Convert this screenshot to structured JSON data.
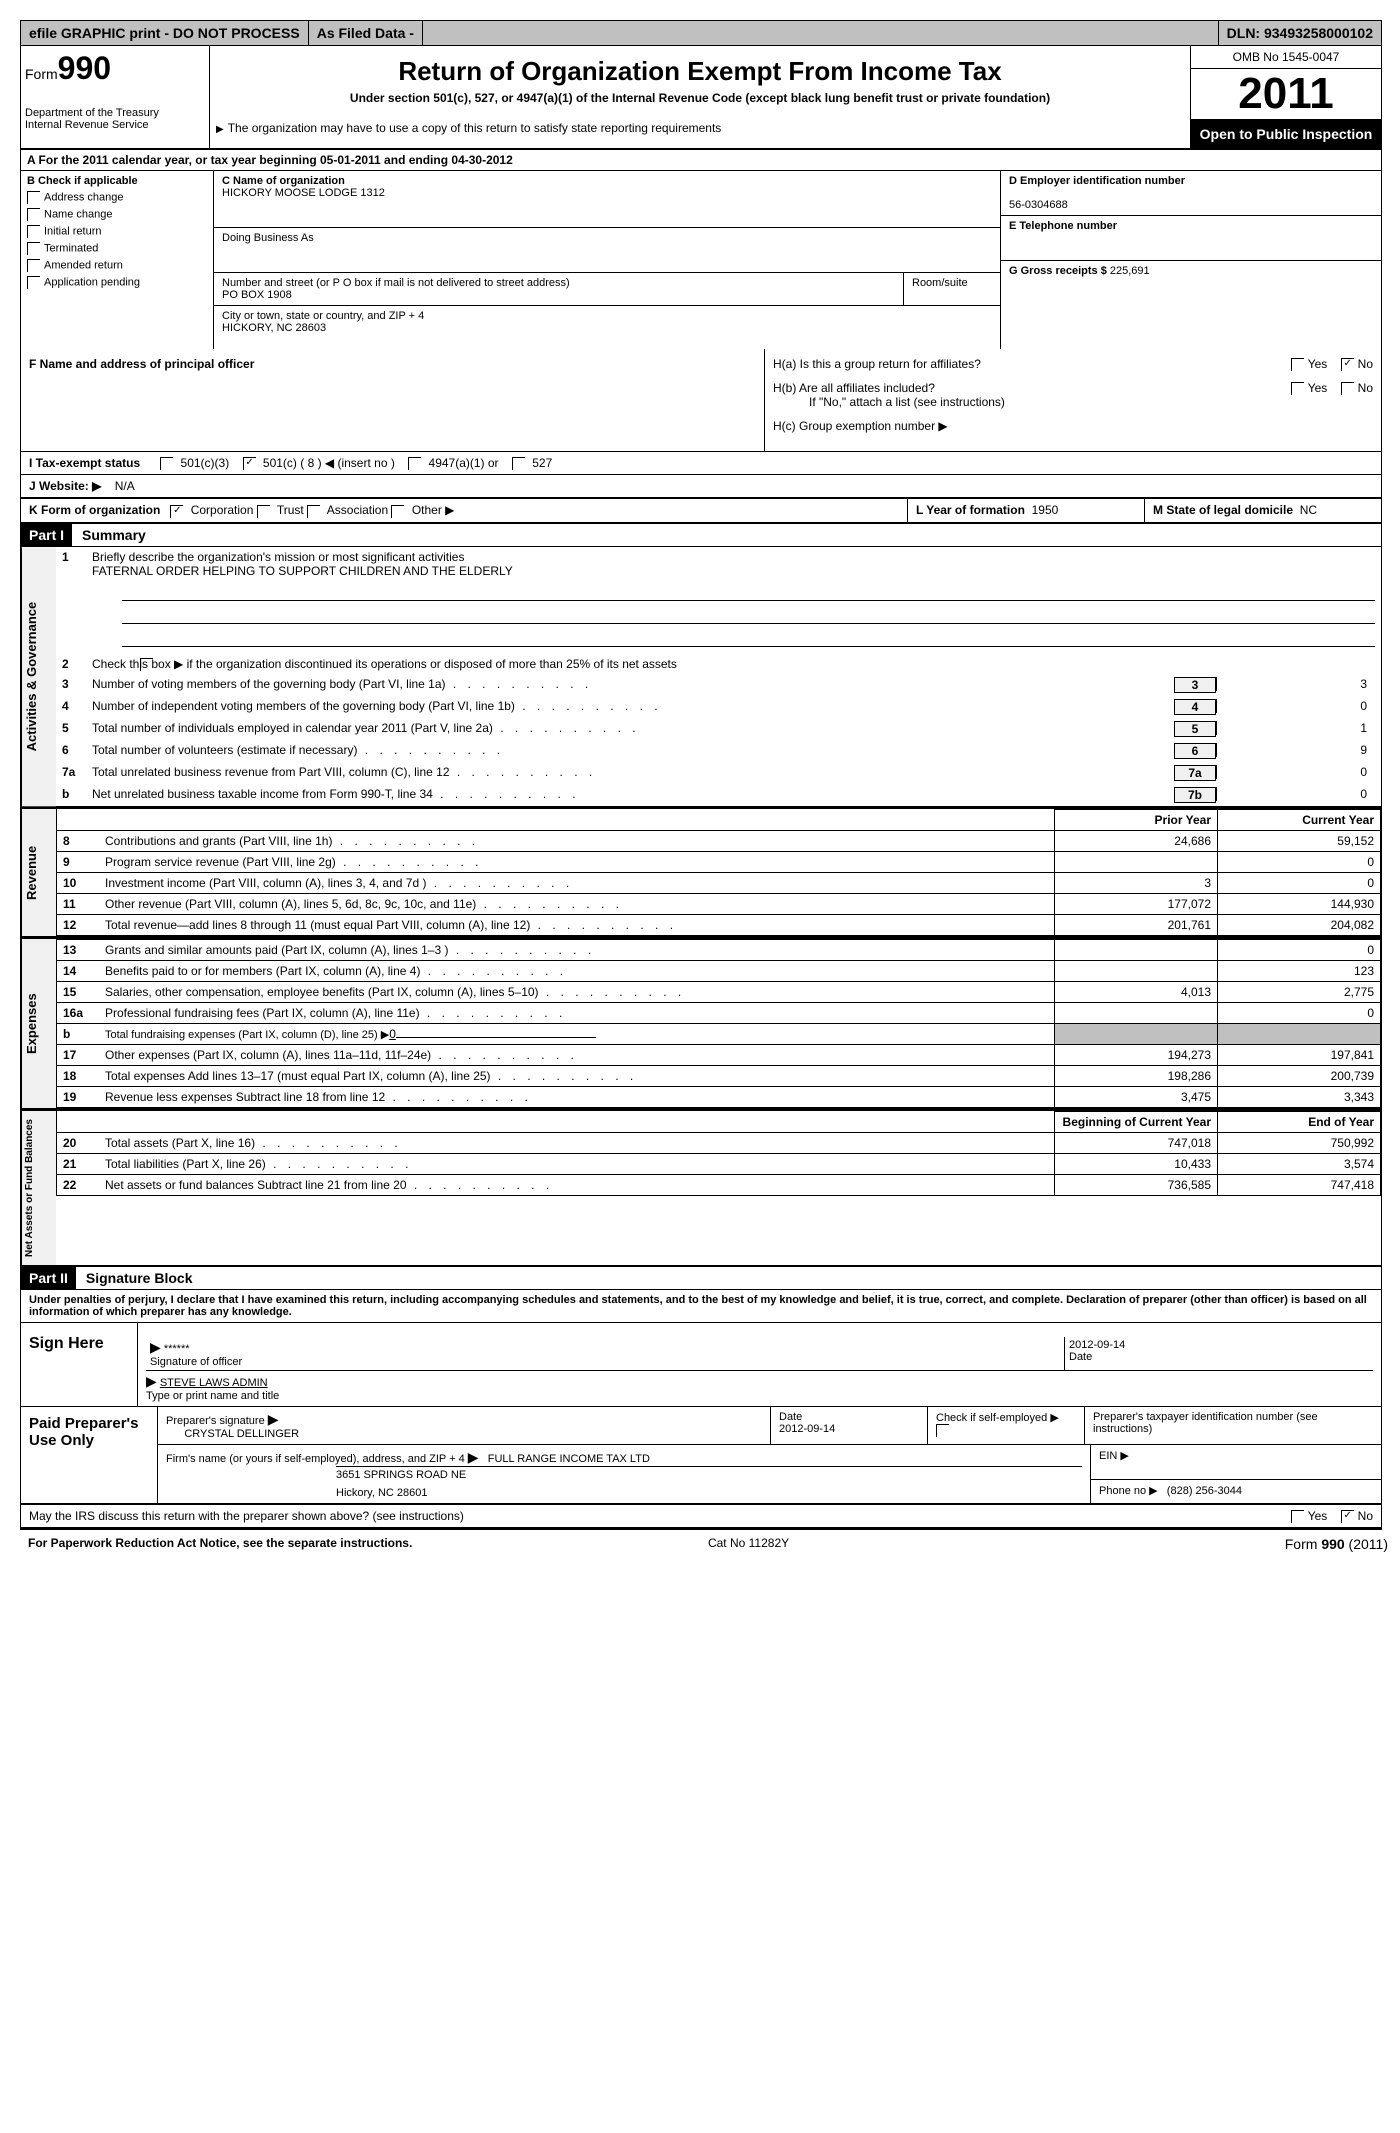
{
  "topbar": {
    "efile": "efile GRAPHIC print - DO NOT PROCESS",
    "asfiled": "As Filed Data -",
    "dln_label": "DLN:",
    "dln": "93493258000102"
  },
  "header": {
    "form_label": "Form",
    "form_number": "990",
    "dept": "Department of the Treasury",
    "irs": "Internal Revenue Service",
    "title": "Return of Organization Exempt From Income Tax",
    "subtitle": "Under section 501(c), 527, or 4947(a)(1) of the Internal Revenue Code (except black lung benefit trust or private foundation)",
    "note": "The organization may have to use a copy of this return to satisfy state reporting requirements",
    "omb": "OMB No 1545-0047",
    "year": "2011",
    "inspection": "Open to Public Inspection"
  },
  "row_a": "A  For the 2011 calendar year, or tax year beginning 05-01-2011     and ending 04-30-2012",
  "col_b": {
    "label": "B  Check if applicable",
    "items": [
      "Address change",
      "Name change",
      "Initial return",
      "Terminated",
      "Amended return",
      "Application pending"
    ]
  },
  "col_c": {
    "name_label": "C Name of organization",
    "name": "HICKORY MOOSE LODGE 1312",
    "dba_label": "Doing Business As",
    "dba": "",
    "addr_label": "Number and street (or P O  box if mail is not delivered to street address)",
    "room_label": "Room/suite",
    "addr": "PO BOX 1908",
    "city_label": "City or town, state or country, and ZIP + 4",
    "city": "HICKORY, NC  28603"
  },
  "col_d": {
    "label": "D Employer identification number",
    "value": "56-0304688"
  },
  "col_e": {
    "label": "E Telephone number",
    "value": ""
  },
  "col_g": {
    "label": "G Gross receipts $",
    "value": "225,691"
  },
  "row_f": {
    "label": "F    Name and address of principal officer"
  },
  "row_h": {
    "ha": "H(a)  Is this a group return for affiliates?",
    "hb": "H(b)  Are all affiliates included?",
    "hb_note": "If \"No,\" attach a list  (see instructions)",
    "hc": "H(c)   Group exemption number ▶"
  },
  "row_i": {
    "label": "I    Tax-exempt status",
    "opt1": "501(c)(3)",
    "opt2": "501(c) ( 8 ) ◀ (insert no )",
    "opt3": "4947(a)(1) or",
    "opt4": "527"
  },
  "row_j": {
    "label": "J   Website: ▶",
    "value": "N/A"
  },
  "row_k": {
    "label": "K Form of organization",
    "corp": "Corporation",
    "trust": "Trust",
    "assoc": "Association",
    "other": "Other ▶",
    "year_label": "L Year of formation",
    "year": "1950",
    "state_label": "M State of legal domicile",
    "state": "NC"
  },
  "part1": {
    "header": "Part I",
    "title": "Summary"
  },
  "governance": {
    "tab": "Activities & Governance",
    "line1": "Briefly describe the organization's mission or most significant activities",
    "mission": "FATERNAL ORDER HELPING TO SUPPORT CHILDREN AND THE ELDERLY",
    "line2": "Check this box ▶     if the organization discontinued its operations or disposed of more than 25% of its net assets",
    "lines": [
      {
        "n": "3",
        "t": "Number of voting members of the governing body (Part VI, line 1a)",
        "box": "3",
        "v": "3"
      },
      {
        "n": "4",
        "t": "Number of independent voting members of the governing body (Part VI, line 1b)",
        "box": "4",
        "v": "0"
      },
      {
        "n": "5",
        "t": "Total number of individuals employed in calendar year 2011 (Part V, line 2a)",
        "box": "5",
        "v": "1"
      },
      {
        "n": "6",
        "t": "Total number of volunteers (estimate if necessary)",
        "box": "6",
        "v": "9"
      },
      {
        "n": "7a",
        "t": "Total unrelated business revenue from Part VIII, column (C), line 12",
        "box": "7a",
        "v": "0"
      },
      {
        "n": "b",
        "t": "Net unrelated business taxable income from Form 990-T, line 34",
        "box": "7b",
        "v": "0"
      }
    ]
  },
  "revenue": {
    "tab": "Revenue",
    "header_prior": "Prior Year",
    "header_current": "Current Year",
    "rows": [
      {
        "n": "8",
        "t": "Contributions and grants (Part VIII, line 1h)",
        "p": "24,686",
        "c": "59,152"
      },
      {
        "n": "9",
        "t": "Program service revenue (Part VIII, line 2g)",
        "p": "",
        "c": "0"
      },
      {
        "n": "10",
        "t": "Investment income (Part VIII, column (A), lines 3, 4, and 7d )",
        "p": "3",
        "c": "0"
      },
      {
        "n": "11",
        "t": "Other revenue (Part VIII, column (A), lines 5, 6d, 8c, 9c, 10c, and 11e)",
        "p": "177,072",
        "c": "144,930"
      },
      {
        "n": "12",
        "t": "Total revenue—add lines 8 through 11 (must equal Part VIII, column (A), line 12)",
        "p": "201,761",
        "c": "204,082"
      }
    ]
  },
  "expenses": {
    "tab": "Expenses",
    "rows": [
      {
        "n": "13",
        "t": "Grants and similar amounts paid (Part IX, column (A), lines 1–3 )",
        "p": "",
        "c": "0"
      },
      {
        "n": "14",
        "t": "Benefits paid to or for members (Part IX, column (A), line 4)",
        "p": "",
        "c": "123"
      },
      {
        "n": "15",
        "t": "Salaries, other compensation, employee benefits (Part IX, column (A), lines 5–10)",
        "p": "4,013",
        "c": "2,775"
      },
      {
        "n": "16a",
        "t": "Professional fundraising fees (Part IX, column (A), line 11e)",
        "p": "",
        "c": "0"
      },
      {
        "n": "b",
        "t": "Total fundraising expenses (Part IX, column (D), line 25) ▶0",
        "p": "shaded",
        "c": "shaded"
      },
      {
        "n": "17",
        "t": "Other expenses (Part IX, column (A), lines 11a–11d, 11f–24e)",
        "p": "194,273",
        "c": "197,841"
      },
      {
        "n": "18",
        "t": "Total expenses  Add lines 13–17 (must equal Part IX, column (A), line 25)",
        "p": "198,286",
        "c": "200,739"
      },
      {
        "n": "19",
        "t": "Revenue less expenses  Subtract line 18 from line 12",
        "p": "3,475",
        "c": "3,343"
      }
    ]
  },
  "netassets": {
    "tab": "Net Assets or Fund Balances",
    "header_begin": "Beginning of Current Year",
    "header_end": "End of Year",
    "rows": [
      {
        "n": "20",
        "t": "Total assets (Part X, line 16)",
        "p": "747,018",
        "c": "750,992"
      },
      {
        "n": "21",
        "t": "Total liabilities (Part X, line 26)",
        "p": "10,433",
        "c": "3,574"
      },
      {
        "n": "22",
        "t": "Net assets or fund balances  Subtract line 21 from line 20",
        "p": "736,585",
        "c": "747,418"
      }
    ]
  },
  "part2": {
    "header": "Part II",
    "title": "Signature Block",
    "declaration": "Under penalties of perjury, I declare that I have examined this return, including accompanying schedules and statements, and to the best of my knowledge and belief, it is true, correct, and complete. Declaration of preparer (other than officer) is based on all information of which preparer has any knowledge."
  },
  "sign": {
    "label": "Sign Here",
    "sig": "******",
    "sig_label": "Signature of officer",
    "date": "2012-09-14",
    "date_label": "Date",
    "name": "STEVE LAWS ADMIN",
    "name_label": "Type or print name and title"
  },
  "paid": {
    "label": "Paid Preparer's Use Only",
    "prep_sig_label": "Preparer's signature",
    "prep_name": "CRYSTAL DELLINGER",
    "prep_date_label": "Date",
    "prep_date": "2012-09-14",
    "self_emp": "Check if self-employed ▶",
    "ptin_label": "Preparer's taxpayer identification number (see instructions)",
    "firm_label": "Firm's name (or yours if self-employed), address, and ZIP + 4",
    "firm_name": "FULL RANGE INCOME TAX LTD",
    "firm_addr": "3651 SPRINGS ROAD NE",
    "firm_city": "Hickory, NC  28601",
    "ein_label": "EIN ▶",
    "phone_label": "Phone no  ▶",
    "phone": "(828) 256-3044"
  },
  "discuss": "May the IRS discuss this return with the preparer shown above? (see instructions)",
  "footer": {
    "left": "For Paperwork Reduction Act Notice, see the separate instructions.",
    "cat": "Cat No 11282Y",
    "form": "Form 990 (2011)"
  },
  "yes": "Yes",
  "no": "No"
}
